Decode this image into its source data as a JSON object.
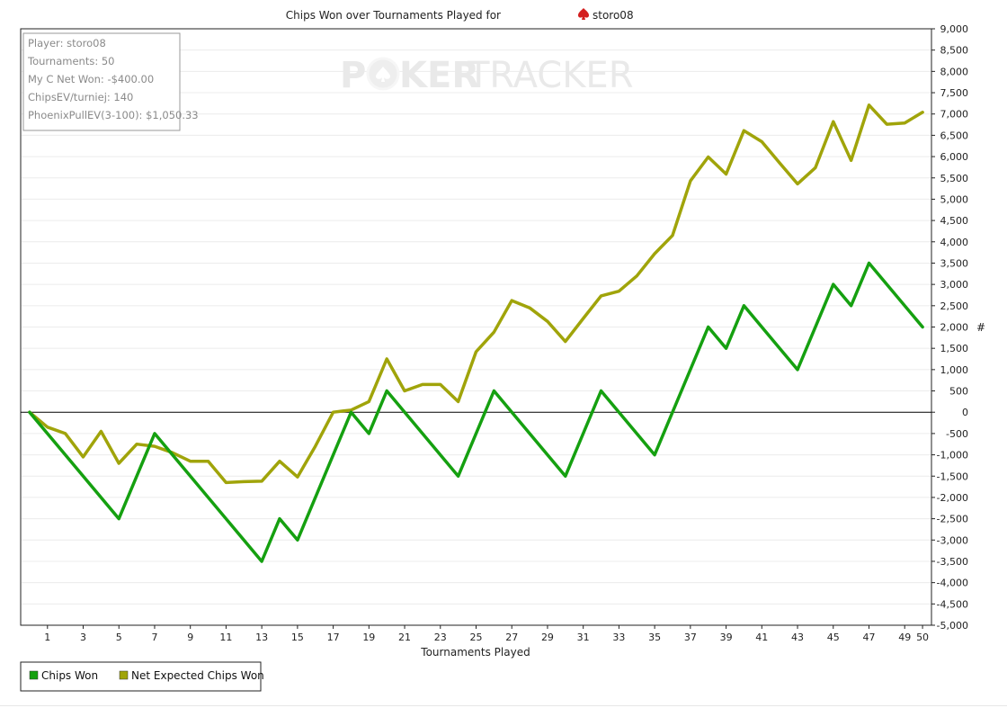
{
  "title": "Chips Won over Tournaments Played for",
  "player_name": "storo08",
  "info_box": {
    "lines": [
      "Player: storo08",
      "Tournaments: 50",
      "My C Net Won: -$400.00",
      "ChipsEV/turniej: 140",
      "PhoenixPullEV(3-100): $1,050.33"
    ]
  },
  "watermark": {
    "parts": [
      "P",
      "KER",
      "TRACKER"
    ]
  },
  "colors": {
    "chips_won": "#15a010",
    "net_expected": "#a0a40a",
    "grid": "#ececec",
    "axis": "#000000"
  },
  "chart_data": {
    "type": "line",
    "title": "Chips Won over Tournaments Played for storo08",
    "xlabel": "Tournaments Played",
    "ylabel": "#",
    "xlim": [
      -0.5,
      50.5
    ],
    "ylim": [
      -5000,
      9000
    ],
    "y_ticks": [
      9000,
      8500,
      8000,
      7500,
      7000,
      6500,
      6000,
      5500,
      5000,
      4500,
      4000,
      3500,
      3000,
      2500,
      2000,
      1500,
      1000,
      500,
      0,
      -500,
      -1000,
      -1500,
      -2000,
      -2500,
      -3000,
      -3500,
      -4000,
      -4500,
      -5000
    ],
    "y_tick_labels": [
      "9,000",
      "8,500",
      "8,000",
      "7,500",
      "7,000",
      "6,500",
      "6,000",
      "5,500",
      "5,000",
      "4,500",
      "4,000",
      "3,500",
      "3,000",
      "2,500",
      "2,000",
      "1,500",
      "1,000",
      "500",
      "0",
      "-500",
      "-1,000",
      "-1,500",
      "-2,000",
      "-2,500",
      "-3,000",
      "-3,500",
      "-4,000",
      "-4,500",
      "-5,000"
    ],
    "x_ticks": [
      1,
      3,
      5,
      7,
      9,
      11,
      13,
      15,
      17,
      19,
      21,
      23,
      25,
      27,
      29,
      31,
      33,
      35,
      37,
      39,
      41,
      43,
      45,
      47,
      49,
      50
    ],
    "x_tick_labels": [
      "1",
      "3",
      "5",
      "7",
      "9",
      "11",
      "13",
      "15",
      "17",
      "19",
      "21",
      "23",
      "25",
      "27",
      "29",
      "31",
      "33",
      "35",
      "37",
      "39",
      "41",
      "43",
      "45",
      "47",
      "49",
      "50"
    ],
    "grid": true,
    "legend_position": "bottom-left",
    "series": [
      {
        "name": "Chips Won",
        "color": "#15a010",
        "x": [
          0,
          5,
          7,
          13,
          14,
          15,
          18,
          19,
          20,
          24,
          26,
          30,
          32,
          35,
          38,
          39,
          40,
          43,
          45,
          46,
          47,
          50
        ],
        "y": [
          0,
          -2500,
          -500,
          -3500,
          -2500,
          -3000,
          0,
          -500,
          500,
          -1500,
          500,
          -1500,
          500,
          -1000,
          2000,
          1500,
          2500,
          1000,
          3000,
          2500,
          3500,
          2000
        ]
      },
      {
        "name": "Net Expected Chips Won",
        "color": "#a0a40a",
        "x": [
          0,
          1,
          2,
          3,
          4,
          5,
          6,
          7,
          8,
          9,
          10,
          11,
          12,
          13,
          14,
          15,
          16,
          17,
          18,
          19,
          20,
          21,
          22,
          23,
          24,
          25,
          26,
          27,
          28,
          29,
          30,
          31,
          32,
          33,
          34,
          35,
          36,
          37,
          38,
          39,
          40,
          41,
          42,
          43,
          44,
          45,
          46,
          47,
          48,
          49,
          50
        ],
        "y": [
          0,
          -350,
          -500,
          -1050,
          -450,
          -1200,
          -750,
          -800,
          -950,
          -1150,
          -1150,
          -1650,
          -1630,
          -1620,
          -1150,
          -1520,
          -800,
          0,
          50,
          250,
          1250,
          500,
          650,
          650,
          250,
          1420,
          1880,
          2620,
          2450,
          2130,
          1660,
          2200,
          2730,
          2840,
          3200,
          3720,
          4150,
          5430,
          5990,
          5590,
          6610,
          6350,
          5850,
          5360,
          5740,
          6820,
          5910,
          7210,
          6760,
          6790,
          7040
        ]
      }
    ]
  }
}
